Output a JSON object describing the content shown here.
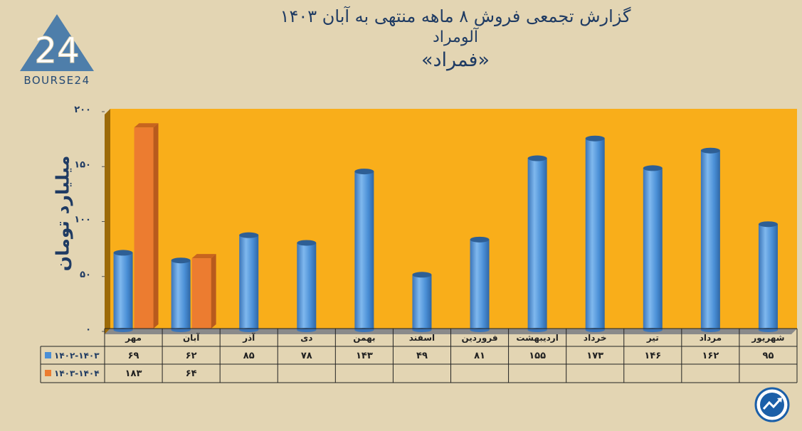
{
  "header": {
    "title_line1": "گزارش تجمعی فروش ۸ ماهه منتهی به آبان ۱۴۰۳",
    "title_line2": "آلومراد",
    "title_line3": "«فمراد»"
  },
  "logo": {
    "text": "BOURSE24",
    "mark": "24"
  },
  "colors": {
    "background": "#e3d5b3",
    "plot_area": "#f9ae1a",
    "series1": "#4a8fd6",
    "series2": "#ec7c30",
    "text": "#1f3b63"
  },
  "icons": [
    "bourse24-logo-icon",
    "trend-chart-icon"
  ],
  "chart_data": {
    "type": "bar",
    "ylabel": "میلیارد تومان",
    "ylim": [
      0,
      200
    ],
    "yticks": [
      "۰",
      "۵۰",
      "۱۰۰",
      "۱۵۰",
      "۲۰۰"
    ],
    "ytick_values": [
      0,
      50,
      100,
      150,
      200
    ],
    "categories": [
      "مهر",
      "آبان",
      "آذر",
      "دی",
      "بهمن",
      "اسفند",
      "فروردین",
      "اردیبهشت",
      "خرداد",
      "تیر",
      "مرداد",
      "شهریور"
    ],
    "series": [
      {
        "name": "۱۴۰۲-۱۴۰۳",
        "values": [
          69,
          62,
          85,
          78,
          143,
          49,
          81,
          155,
          173,
          146,
          162,
          95
        ],
        "labels": [
          "۶۹",
          "۶۲",
          "۸۵",
          "۷۸",
          "۱۴۳",
          "۴۹",
          "۸۱",
          "۱۵۵",
          "۱۷۳",
          "۱۴۶",
          "۱۶۲",
          "۹۵"
        ]
      },
      {
        "name": "۱۴۰۳-۱۴۰۴",
        "values": [
          183,
          64,
          null,
          null,
          null,
          null,
          null,
          null,
          null,
          null,
          null,
          null
        ],
        "labels": [
          "۱۸۳",
          "۶۴",
          "",
          "",
          "",
          "",
          "",
          "",
          "",
          "",
          "",
          ""
        ]
      }
    ],
    "grid": false,
    "legend": "data-table"
  }
}
